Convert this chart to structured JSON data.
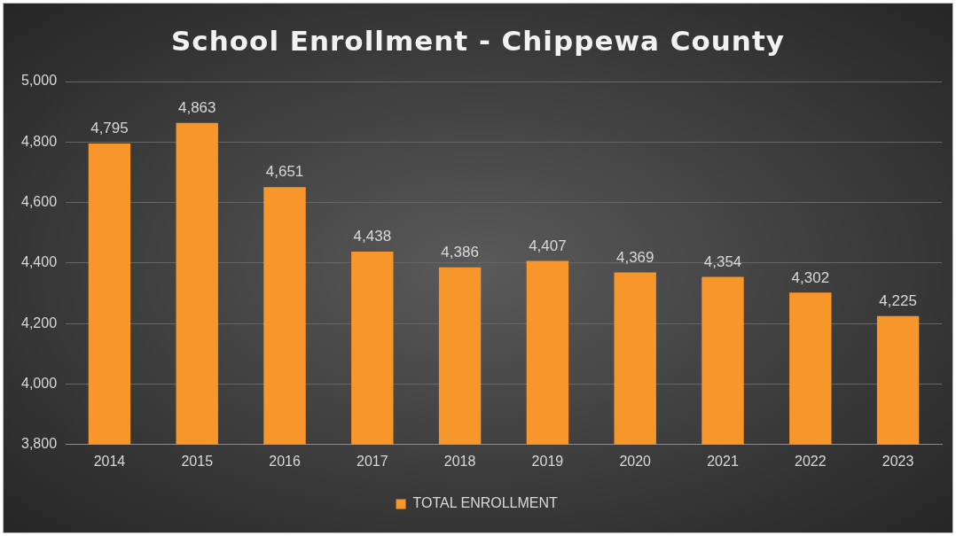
{
  "chart_data": {
    "type": "bar",
    "title": "School Enrollment - Chippewa County",
    "categories": [
      "2014",
      "2015",
      "2016",
      "2017",
      "2018",
      "2019",
      "2020",
      "2021",
      "2022",
      "2023"
    ],
    "series": [
      {
        "name": "TOTAL ENROLLMENT",
        "color": "#f7962a",
        "values": [
          4795,
          4863,
          4651,
          4438,
          4386,
          4407,
          4369,
          4354,
          4302,
          4225
        ],
        "value_labels": [
          "4,795",
          "4,863",
          "4,651",
          "4,438",
          "4,386",
          "4,407",
          "4,369",
          "4,354",
          "4,302",
          "4,225"
        ]
      }
    ],
    "ylim": [
      3800,
      5000
    ],
    "yticks": [
      {
        "value": 3800,
        "label": "3,800"
      },
      {
        "value": 4000,
        "label": "4,000"
      },
      {
        "value": 4200,
        "label": "4,200"
      },
      {
        "value": 4400,
        "label": "4,400"
      },
      {
        "value": 4600,
        "label": "4,600"
      },
      {
        "value": 4800,
        "label": "4,800"
      },
      {
        "value": 5000,
        "label": "5,000"
      }
    ],
    "grid": "y",
    "legend": "bottom"
  }
}
